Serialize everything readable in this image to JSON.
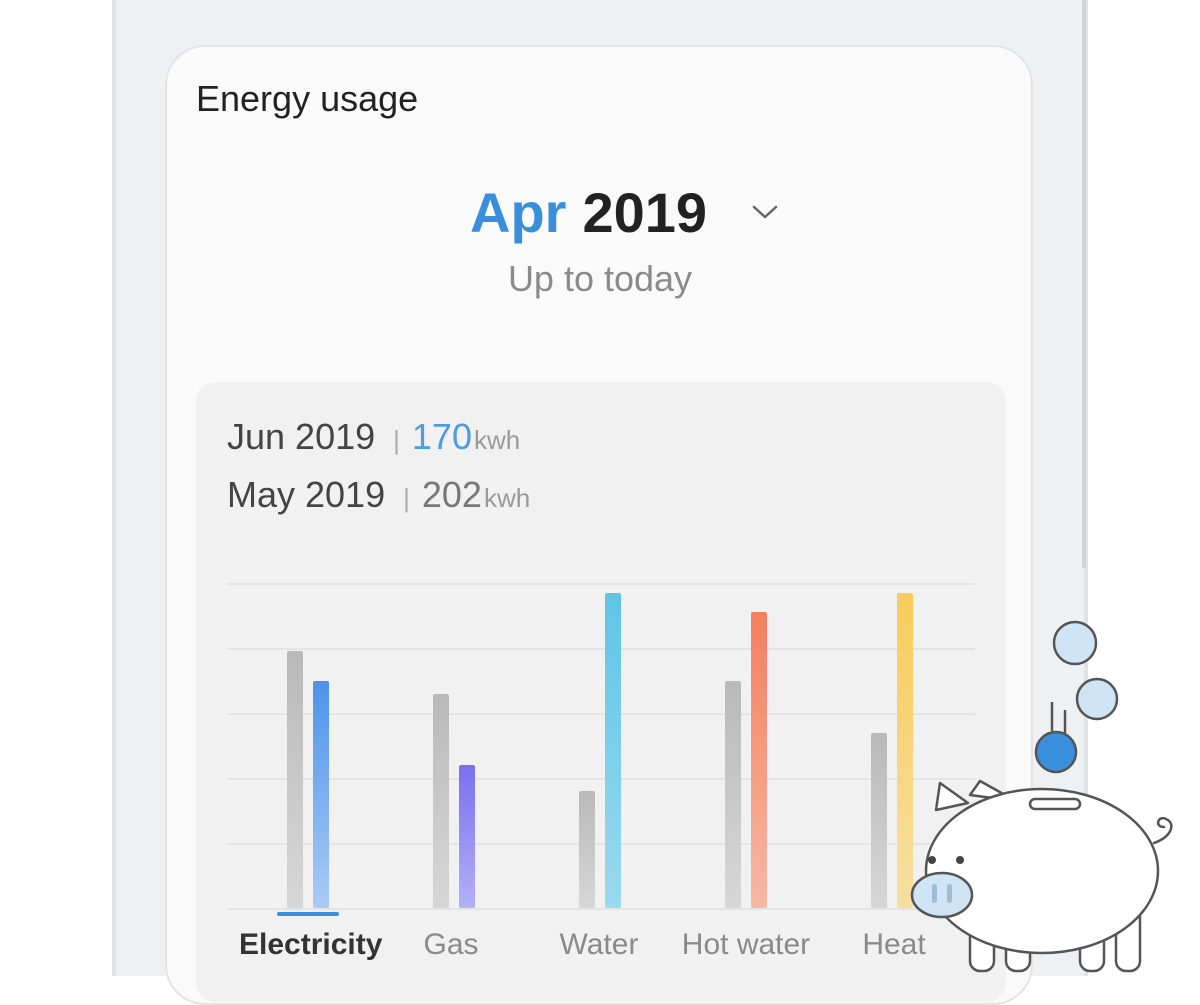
{
  "card": {
    "title": "Energy usage",
    "month": "Apr",
    "year": "2019",
    "subtitle": "Up to today"
  },
  "summary": [
    {
      "period": "Jun 2019",
      "value": "170",
      "unit": "kwh"
    },
    {
      "period": "May 2019",
      "value": "202",
      "unit": "kwh"
    }
  ],
  "categories": [
    {
      "label": "Electricity",
      "active": true
    },
    {
      "label": "Gas",
      "active": false
    },
    {
      "label": "Water",
      "active": false
    },
    {
      "label": "Hot water",
      "active": false
    },
    {
      "label": "Heat",
      "active": false
    }
  ],
  "chart_data": {
    "type": "bar",
    "categories": [
      "Electricity",
      "Gas",
      "Water",
      "Hot water",
      "Heat"
    ],
    "ylim": [
      0,
      100
    ],
    "grid": true,
    "series": [
      {
        "values": [
          79,
          66,
          36,
          70,
          54
        ],
        "color": "#c4c4c4"
      },
      {
        "values": [
          70,
          44,
          97,
          91,
          97
        ],
        "colors": [
          [
            "#4e93ea",
            "#a9cbf5"
          ],
          [
            "#7a6ff0",
            "#b5b0f8"
          ],
          [
            "#5ec5e6",
            "#9ad9ef"
          ],
          [
            "#f47f5e",
            "#f6b8a5"
          ],
          [
            "#f8cb5a",
            "#f8dfa0"
          ]
        ]
      }
    ]
  },
  "colors": {
    "accent": "#3a8fdc",
    "pig_coin": "#3a8fdc",
    "bubble": "#cfe4f5"
  },
  "icons": {
    "dropdown": "chevron-down-icon",
    "mascot": "piggy-bank-icon"
  }
}
